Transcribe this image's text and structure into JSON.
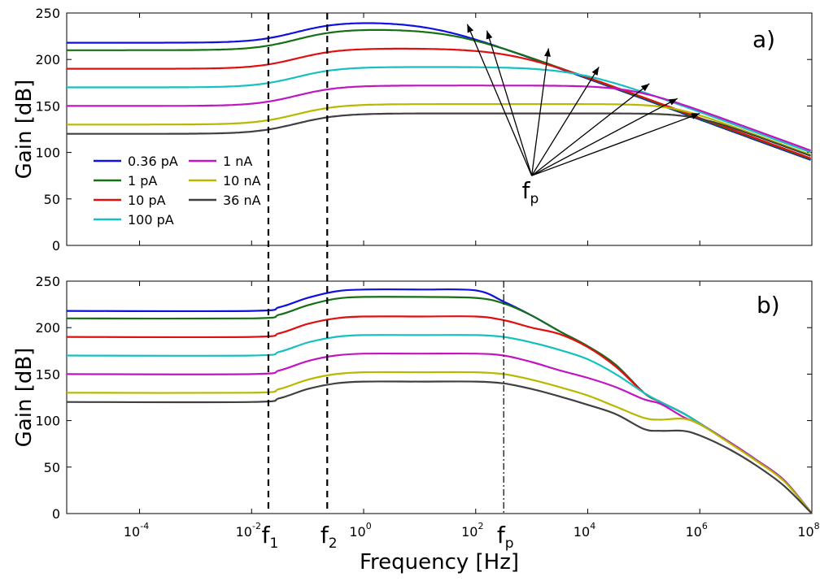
{
  "chart_data": {
    "type": "line",
    "x_scale": "log10",
    "xlabel": "Frequency [Hz]",
    "x_ticks": [
      {
        "base": "10",
        "exp": "-4"
      },
      {
        "base": "10",
        "exp": "-2"
      },
      {
        "base": "10",
        "exp": "0"
      },
      {
        "base": "10",
        "exp": "2"
      },
      {
        "base": "10",
        "exp": "4"
      },
      {
        "base": "10",
        "exp": "6"
      },
      {
        "base": "10",
        "exp": "8"
      }
    ],
    "x_tick_values": [
      -4,
      -2,
      0,
      2,
      4,
      6,
      8
    ],
    "xlim_log10": [
      -5.3,
      8
    ],
    "vlines": [
      {
        "label": "f",
        "sub": "1",
        "x_log10": -1.7
      },
      {
        "label": "f",
        "sub": "2",
        "x_log10": -0.65
      }
    ],
    "legend": {
      "placement": "left-center (panel a)",
      "entries": [
        {
          "label": "0.36 pA",
          "color": "#1010e0"
        },
        {
          "label": "1 pA",
          "color": "#157015"
        },
        {
          "label": "10 pA",
          "color": "#e01010"
        },
        {
          "label": "100 pA",
          "color": "#15c0c0"
        },
        {
          "label": "1 nA",
          "color": "#c015c0"
        },
        {
          "label": "10 nA",
          "color": "#b8b800"
        },
        {
          "label": "36 nA",
          "color": "#404040"
        }
      ]
    },
    "panels": [
      {
        "tag": "a)",
        "ylabel": "Gain [dB]",
        "ylim": [
          0,
          250
        ],
        "y_ticks": [
          "0",
          "50",
          "100",
          "150",
          "200",
          "250"
        ],
        "fp_annotation": {
          "label": "f",
          "sub": "p",
          "origin": [
            3,
            75
          ]
        },
        "series": [
          {
            "name": "0.36 pA",
            "color": "#1010e0",
            "low": 218,
            "high": 241,
            "pole_log10": 1.2,
            "slope_db_per_dec": 22,
            "knee": 0.5
          },
          {
            "name": "1 pA",
            "color": "#157015",
            "low": 210,
            "high": 233,
            "pole_log10": 1.6,
            "slope_db_per_dec": 22,
            "knee": 0.5
          },
          {
            "name": "10 pA",
            "color": "#e01010",
            "low": 190,
            "high": 212,
            "pole_log10": 2.6,
            "slope_db_per_dec": 22,
            "knee": 0.5
          },
          {
            "name": "100 pA",
            "color": "#15c0c0",
            "low": 170,
            "high": 192,
            "pole_log10": 3.8,
            "slope_db_per_dec": 22,
            "knee": 0.5
          },
          {
            "name": "1 nA",
            "color": "#c015c0",
            "low": 150,
            "high": 172,
            "pole_log10": 4.8,
            "slope_db_per_dec": 22,
            "knee": 0.4
          },
          {
            "name": "10 nA",
            "color": "#b8b800",
            "low": 130,
            "high": 152,
            "pole_log10": 5.5,
            "slope_db_per_dec": 22,
            "knee": 0.3
          },
          {
            "name": "36 nA",
            "color": "#404040",
            "low": 120,
            "high": 142,
            "pole_log10": 5.9,
            "slope_db_per_dec": 22,
            "knee": 0.3
          }
        ],
        "arrow_targets_log10": [
          [
            1.85,
            238
          ],
          [
            2.2,
            231
          ],
          [
            3.3,
            212
          ],
          [
            4.2,
            192
          ],
          [
            5.1,
            174
          ],
          [
            5.6,
            158
          ],
          [
            6.0,
            142
          ]
        ]
      },
      {
        "tag": "b)",
        "ylabel": "Gain [dB]",
        "ylim": [
          0,
          250
        ],
        "y_ticks": [
          "0",
          "50",
          "100",
          "150",
          "200",
          "250"
        ],
        "vline_fp": {
          "label": "f",
          "sub": "p",
          "x_log10": 2.5
        },
        "series": [
          {
            "name": "0.36 pA",
            "color": "#1010e0",
            "points": [
              [
                -5.3,
                218
              ],
              [
                -2,
                218
              ],
              [
                -1.5,
                222
              ],
              [
                -1,
                232
              ],
              [
                -0.5,
                239
              ],
              [
                0,
                241
              ],
              [
                1,
                241
              ],
              [
                2,
                240
              ],
              [
                2.5,
                228
              ],
              [
                3,
                213
              ],
              [
                3.5,
                196
              ],
              [
                4,
                180
              ],
              [
                4.5,
                160
              ],
              [
                5,
                130
              ],
              [
                5.3,
                120
              ],
              [
                5.7,
                108
              ],
              [
                6,
                97
              ],
              [
                6.5,
                78
              ],
              [
                7,
                58
              ],
              [
                7.5,
                36
              ],
              [
                8,
                0
              ]
            ]
          },
          {
            "name": "1 pA",
            "color": "#157015",
            "points": [
              [
                -5.3,
                210
              ],
              [
                -2,
                210
              ],
              [
                -1.5,
                214
              ],
              [
                -1,
                224
              ],
              [
                -0.5,
                231
              ],
              [
                0,
                233
              ],
              [
                1,
                233
              ],
              [
                2,
                232
              ],
              [
                2.5,
                226
              ],
              [
                3,
                213
              ],
              [
                3.5,
                196
              ],
              [
                4,
                180
              ],
              [
                4.5,
                160
              ],
              [
                5,
                130
              ],
              [
                5.3,
                120
              ],
              [
                5.7,
                108
              ],
              [
                6,
                97
              ],
              [
                6.5,
                78
              ],
              [
                7,
                58
              ],
              [
                7.5,
                36
              ],
              [
                8,
                0
              ]
            ]
          },
          {
            "name": "10 pA",
            "color": "#e01010",
            "points": [
              [
                -5.3,
                190
              ],
              [
                -2,
                190
              ],
              [
                -1.5,
                194
              ],
              [
                -1,
                204
              ],
              [
                -0.5,
                210
              ],
              [
                0,
                212
              ],
              [
                1,
                212
              ],
              [
                2,
                212
              ],
              [
                2.5,
                208
              ],
              [
                3,
                200
              ],
              [
                3.5,
                193
              ],
              [
                4,
                179
              ],
              [
                4.5,
                158
              ],
              [
                5,
                130
              ],
              [
                5.3,
                120
              ],
              [
                5.7,
                108
              ],
              [
                6,
                97
              ],
              [
                6.5,
                78
              ],
              [
                7,
                58
              ],
              [
                7.5,
                36
              ],
              [
                8,
                0
              ]
            ]
          },
          {
            "name": "100 pA",
            "color": "#15c0c0",
            "points": [
              [
                -5.3,
                170
              ],
              [
                -2,
                170
              ],
              [
                -1.5,
                174
              ],
              [
                -1,
                184
              ],
              [
                -0.5,
                190
              ],
              [
                0,
                192
              ],
              [
                1,
                192
              ],
              [
                2,
                192
              ],
              [
                2.5,
                190
              ],
              [
                3,
                184
              ],
              [
                3.5,
                176
              ],
              [
                4,
                166
              ],
              [
                4.5,
                150
              ],
              [
                5,
                130
              ],
              [
                5.3,
                120
              ],
              [
                5.7,
                108
              ],
              [
                6,
                97
              ],
              [
                6.5,
                78
              ],
              [
                7,
                58
              ],
              [
                7.5,
                36
              ],
              [
                8,
                0
              ]
            ]
          },
          {
            "name": "1 nA",
            "color": "#c015c0",
            "points": [
              [
                -5.3,
                150
              ],
              [
                -2,
                150
              ],
              [
                -1.5,
                154
              ],
              [
                -1,
                164
              ],
              [
                -0.5,
                170
              ],
              [
                0,
                172
              ],
              [
                1,
                172
              ],
              [
                2,
                172
              ],
              [
                2.5,
                170
              ],
              [
                3,
                163
              ],
              [
                3.5,
                154
              ],
              [
                4,
                146
              ],
              [
                4.5,
                136
              ],
              [
                5,
                123
              ],
              [
                5.3,
                118
              ],
              [
                5.7,
                104
              ],
              [
                6,
                96
              ],
              [
                6.5,
                78
              ],
              [
                7,
                58
              ],
              [
                7.5,
                36
              ],
              [
                8,
                0
              ]
            ]
          },
          {
            "name": "10 nA",
            "color": "#b8b800",
            "points": [
              [
                -5.3,
                130
              ],
              [
                -2,
                130
              ],
              [
                -1.5,
                134
              ],
              [
                -1,
                144
              ],
              [
                -0.5,
                150
              ],
              [
                0,
                152
              ],
              [
                1,
                152
              ],
              [
                2,
                152
              ],
              [
                2.5,
                150
              ],
              [
                3,
                144
              ],
              [
                3.5,
                136
              ],
              [
                4,
                127
              ],
              [
                4.5,
                115
              ],
              [
                5,
                103
              ],
              [
                5.3,
                101
              ],
              [
                5.7,
                102
              ],
              [
                6,
                96
              ],
              [
                6.5,
                77
              ],
              [
                7,
                57
              ],
              [
                7.5,
                35
              ],
              [
                8,
                0
              ]
            ]
          },
          {
            "name": "36 nA",
            "color": "#404040",
            "points": [
              [
                -5.3,
                120
              ],
              [
                -2,
                120
              ],
              [
                -1.5,
                124
              ],
              [
                -1,
                134
              ],
              [
                -0.5,
                140
              ],
              [
                0,
                142
              ],
              [
                1,
                142
              ],
              [
                2,
                142
              ],
              [
                2.5,
                140
              ],
              [
                3,
                134
              ],
              [
                3.5,
                126
              ],
              [
                4,
                117
              ],
              [
                4.5,
                107
              ],
              [
                5,
                91
              ],
              [
                5.3,
                89
              ],
              [
                5.7,
                89
              ],
              [
                6,
                84
              ],
              [
                6.5,
                70
              ],
              [
                7,
                52
              ],
              [
                7.5,
                30
              ],
              [
                8,
                0
              ]
            ]
          }
        ]
      }
    ]
  }
}
